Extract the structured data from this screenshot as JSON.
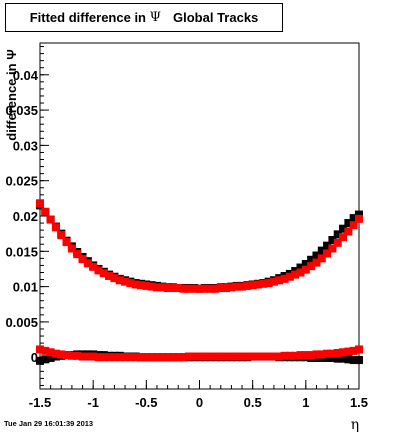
{
  "title": {
    "prefix": "Fitted difference in ",
    "symbol": "Ψ",
    "suffix": "Global Tracks"
  },
  "timestamp": "Tue Jan 29 16:01:39 2013",
  "chart_data": {
    "type": "scatter",
    "title": "Fitted difference in Ψ   Global Tracks",
    "xlabel": "η",
    "ylabel": "difference in Ψ",
    "xlim": [
      -1.5,
      1.5
    ],
    "ylim": [
      -0.0045,
      0.0445
    ],
    "x_ticks": [
      "-1.5",
      "-1",
      "-0.5",
      "0",
      "0.5",
      "1",
      "1.5"
    ],
    "y_ticks": [
      "0",
      "0.005",
      "0.01",
      "0.015",
      "0.02",
      "0.025",
      "0.03",
      "0.035",
      "0.04"
    ],
    "marker": "square",
    "series": [
      {
        "color": "#000000",
        "x": [
          -1.5,
          -1.45,
          -1.4,
          -1.35,
          -1.3,
          -1.25,
          -1.2,
          -1.15,
          -1.1,
          -1.05,
          -1.0,
          -0.95,
          -0.9,
          -0.85,
          -0.8,
          -0.75,
          -0.7,
          -0.65,
          -0.6,
          -0.55,
          -0.5,
          -0.45,
          -0.4,
          -0.35,
          -0.3,
          -0.25,
          -0.2,
          -0.15,
          -0.1,
          -0.05,
          0.0,
          0.05,
          0.1,
          0.15,
          0.2,
          0.25,
          0.3,
          0.35,
          0.4,
          0.45,
          0.5,
          0.55,
          0.6,
          0.65,
          0.7,
          0.75,
          0.8,
          0.85,
          0.9,
          0.95,
          1.0,
          1.05,
          1.1,
          1.15,
          1.2,
          1.25,
          1.3,
          1.35,
          1.4,
          1.45,
          1.5
        ],
        "y": [
          0.0215,
          0.0205,
          0.0195,
          0.0185,
          0.0175,
          0.0165,
          0.0157,
          0.0149,
          0.0142,
          0.0136,
          0.013,
          0.0125,
          0.0121,
          0.0117,
          0.0114,
          0.0111,
          0.0109,
          0.0107,
          0.0105,
          0.0104,
          0.0103,
          0.0102,
          0.0101,
          0.01,
          0.0099,
          0.0099,
          0.0098,
          0.0098,
          0.0098,
          0.0098,
          0.0097,
          0.0098,
          0.0098,
          0.0098,
          0.0099,
          0.0099,
          0.01,
          0.0101,
          0.0101,
          0.0102,
          0.0103,
          0.0104,
          0.0105,
          0.0107,
          0.0109,
          0.0112,
          0.0115,
          0.0118,
          0.0122,
          0.0127,
          0.0132,
          0.0138,
          0.0144,
          0.0151,
          0.0158,
          0.0166,
          0.0174,
          0.0182,
          0.019,
          0.0197,
          0.0202
        ]
      },
      {
        "color": "#ff0000",
        "x": [
          -1.5,
          -1.45,
          -1.4,
          -1.35,
          -1.3,
          -1.25,
          -1.2,
          -1.15,
          -1.1,
          -1.05,
          -1.0,
          -0.95,
          -0.9,
          -0.85,
          -0.8,
          -0.75,
          -0.7,
          -0.65,
          -0.6,
          -0.55,
          -0.5,
          -0.45,
          -0.4,
          -0.35,
          -0.3,
          -0.25,
          -0.2,
          -0.15,
          -0.1,
          -0.05,
          0.0,
          0.05,
          0.1,
          0.15,
          0.2,
          0.25,
          0.3,
          0.35,
          0.4,
          0.45,
          0.5,
          0.55,
          0.6,
          0.65,
          0.7,
          0.75,
          0.8,
          0.85,
          0.9,
          0.95,
          1.0,
          1.05,
          1.1,
          1.15,
          1.2,
          1.25,
          1.3,
          1.35,
          1.4,
          1.45,
          1.5
        ],
        "y": [
          0.0218,
          0.0206,
          0.0195,
          0.0184,
          0.0173,
          0.0163,
          0.0154,
          0.0146,
          0.0139,
          0.0133,
          0.0128,
          0.0123,
          0.0119,
          0.0115,
          0.0112,
          0.0109,
          0.0107,
          0.0105,
          0.0103,
          0.0102,
          0.0101,
          0.01,
          0.0099,
          0.0099,
          0.0098,
          0.0098,
          0.0098,
          0.0097,
          0.0097,
          0.0097,
          0.0097,
          0.0097,
          0.0097,
          0.0097,
          0.0098,
          0.0098,
          0.0099,
          0.01,
          0.01,
          0.0101,
          0.0102,
          0.0103,
          0.0104,
          0.0105,
          0.0107,
          0.0109,
          0.0111,
          0.0114,
          0.0117,
          0.012,
          0.0124,
          0.0129,
          0.0134,
          0.014,
          0.0147,
          0.0154,
          0.0162,
          0.017,
          0.0178,
          0.0187,
          0.0196
        ]
      },
      {
        "color": "#000000",
        "x": [
          -1.5,
          -1.45,
          -1.4,
          -1.35,
          -1.3,
          -1.25,
          -1.2,
          -1.15,
          -1.1,
          -1.05,
          -1.0,
          -0.95,
          -0.9,
          -0.85,
          -0.8,
          -0.75,
          -0.7,
          -0.65,
          -0.6,
          -0.55,
          -0.5,
          -0.45,
          -0.4,
          -0.35,
          -0.3,
          -0.25,
          -0.2,
          -0.15,
          -0.1,
          -0.05,
          0.0,
          0.05,
          0.1,
          0.15,
          0.2,
          0.25,
          0.3,
          0.35,
          0.4,
          0.45,
          0.5,
          0.55,
          0.6,
          0.65,
          0.7,
          0.75,
          0.8,
          0.85,
          0.9,
          0.95,
          1.0,
          1.05,
          1.1,
          1.15,
          1.2,
          1.25,
          1.3,
          1.35,
          1.4,
          1.45,
          1.5
        ],
        "y": [
          -0.0005,
          -0.0003,
          -0.0001,
          0.0001,
          0.0002,
          0.0003,
          0.0003,
          0.0004,
          0.0004,
          0.0004,
          0.0004,
          0.0003,
          0.0003,
          0.0002,
          0.0002,
          0.0002,
          0.0001,
          0.0001,
          0.0001,
          0.0,
          0.0,
          0.0,
          0.0,
          0.0,
          0.0,
          0.0,
          0.0,
          0.0,
          0.0,
          0.0,
          0.0,
          0.0,
          0.0,
          0.0,
          0.0,
          0.0,
          0.0,
          0.0,
          0.0,
          0.0,
          0.0001,
          0.0001,
          0.0001,
          0.0001,
          0.0001,
          0.0,
          0.0,
          0.0,
          0.0,
          0.0,
          0.0,
          -0.0001,
          -0.0001,
          -0.0001,
          -0.0001,
          -0.0001,
          -0.0002,
          -0.0002,
          -0.0003,
          -0.0004,
          -0.0004
        ]
      },
      {
        "color": "#ff0000",
        "x": [
          -1.5,
          -1.45,
          -1.4,
          -1.35,
          -1.3,
          -1.25,
          -1.2,
          -1.15,
          -1.1,
          -1.05,
          -1.0,
          -0.95,
          -0.9,
          -0.85,
          -0.8,
          -0.75,
          -0.7,
          -0.65,
          -0.6,
          -0.55,
          -0.5,
          -0.45,
          -0.4,
          -0.35,
          -0.3,
          -0.25,
          -0.2,
          -0.15,
          -0.1,
          -0.05,
          0.0,
          0.05,
          0.1,
          0.15,
          0.2,
          0.25,
          0.3,
          0.35,
          0.4,
          0.45,
          0.5,
          0.55,
          0.6,
          0.65,
          0.7,
          0.75,
          0.8,
          0.85,
          0.9,
          0.95,
          1.0,
          1.05,
          1.1,
          1.15,
          1.2,
          1.25,
          1.3,
          1.35,
          1.4,
          1.45,
          1.5
        ],
        "y": [
          0.0011,
          0.0009,
          0.0007,
          0.0005,
          0.0004,
          0.0003,
          0.0002,
          0.0002,
          0.0001,
          0.0001,
          0.0001,
          0.0,
          0.0,
          0.0,
          0.0,
          0.0,
          0.0,
          0.0,
          0.0,
          0.0,
          0.0,
          0.0,
          0.0,
          0.0,
          0.0,
          0.0,
          0.0,
          0.0,
          0.0001,
          0.0001,
          0.0001,
          0.0001,
          0.0001,
          0.0001,
          0.0001,
          0.0001,
          0.0001,
          0.0001,
          0.0001,
          0.0001,
          0.0001,
          0.0001,
          0.0001,
          0.0001,
          0.0001,
          0.0001,
          0.0002,
          0.0002,
          0.0002,
          0.0003,
          0.0003,
          0.0003,
          0.0004,
          0.0004,
          0.0005,
          0.0005,
          0.0006,
          0.0007,
          0.0008,
          0.0009,
          0.0011
        ]
      }
    ]
  }
}
